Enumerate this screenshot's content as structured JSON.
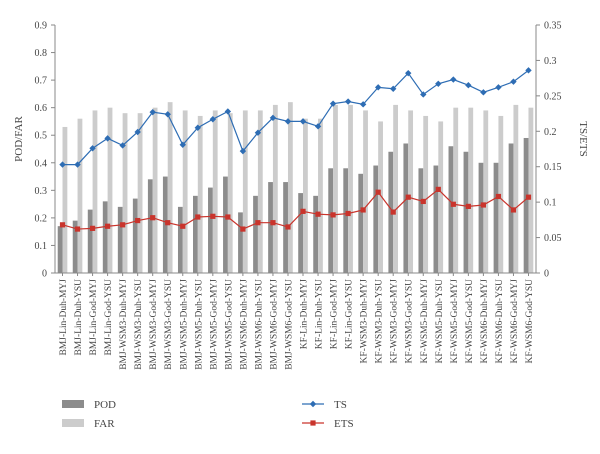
{
  "chart_data": {
    "type": "bar",
    "ylabel": "POD/FAR",
    "y2label": "TS/ETS",
    "ylim": [
      0,
      0.9
    ],
    "y2lim": [
      0,
      0.35
    ],
    "yticks": [
      "0",
      "0.1",
      "0.2",
      "0.3",
      "0.4",
      "0.5",
      "0.6",
      "0.7",
      "0.8",
      "0.9"
    ],
    "y2ticks": [
      "0",
      "0.05",
      "0.1",
      "0.15",
      "0.2",
      "0.25",
      "0.3",
      "0.35"
    ],
    "grid": false,
    "legend_position": "bottom",
    "categories": [
      "BMJ-Lin-Duh-MYJ",
      "BMJ-Lin-Duh-YSU",
      "BMJ-Lin-God-MYJ",
      "BMJ-Lin-God-YSU",
      "BMJ-WSM3-Duh-MYJ",
      "BMJ-WSM3-Duh-YSU",
      "BMJ-WSM3-God-MYJ",
      "BMJ-WSM3-God-YSU",
      "BMJ-WSM5-Duh-MYJ",
      "BMJ-WSM5-Duh-YSU",
      "BMJ-WSM5-God-MYJ",
      "BMJ-WSM5-God-YSU",
      "BMJ-WSM6-Duh-MYJ",
      "BMJ-WSM6-Duh-YSU",
      "BMJ-WSM6-God-MYJ",
      "BMJ-WSM6-God-YSU",
      "KF-Lin-Duh-MYJ",
      "KF-Lin-Duh-YSU",
      "KF-Lin-God-MYJ",
      "KF-Lin-God-YSU",
      "KF-WSM3-Duh-MYJ",
      "KF-WSM3-Duh-YSU",
      "KF-WSM3-God-MYJ",
      "KF-WSM3-God-YSU",
      "KF-WSM5-Duh-MYJ",
      "KF-WSM5-Duh-YSU",
      "KF-WSM5-God-MYJ",
      "KF-WSM5-God-YSU",
      "KF-WSM6-Duh-MYJ",
      "KF-WSM6-Duh-YSU",
      "KF-WSM6-God-MYJ",
      "KF-WSM6-God-YSU"
    ],
    "series": [
      {
        "name": "POD",
        "kind": "bar",
        "axis": "left",
        "color": "#8c8c8c",
        "values": [
          0.17,
          0.19,
          0.23,
          0.26,
          0.24,
          0.27,
          0.34,
          0.35,
          0.24,
          0.28,
          0.31,
          0.35,
          0.22,
          0.28,
          0.33,
          0.33,
          0.29,
          0.28,
          0.38,
          0.38,
          0.36,
          0.39,
          0.44,
          0.47,
          0.38,
          0.39,
          0.46,
          0.44,
          0.4,
          0.4,
          0.47,
          0.49
        ]
      },
      {
        "name": "FAR",
        "kind": "bar",
        "axis": "left",
        "color": "#cccccc",
        "values": [
          0.53,
          0.56,
          0.59,
          0.6,
          0.58,
          0.58,
          0.6,
          0.62,
          0.59,
          0.57,
          0.59,
          0.58,
          0.59,
          0.59,
          0.61,
          0.62,
          0.56,
          0.56,
          0.61,
          0.61,
          0.59,
          0.55,
          0.61,
          0.59,
          0.57,
          0.55,
          0.6,
          0.6,
          0.59,
          0.57,
          0.61,
          0.6
        ]
      },
      {
        "name": "TS",
        "kind": "line",
        "axis": "right",
        "color": "#2e6db4",
        "marker": "diamond",
        "values": [
          0.153,
          0.153,
          0.176,
          0.19,
          0.18,
          0.199,
          0.227,
          0.224,
          0.181,
          0.205,
          0.217,
          0.228,
          0.172,
          0.198,
          0.219,
          0.214,
          0.214,
          0.207,
          0.239,
          0.242,
          0.238,
          0.262,
          0.26,
          0.282,
          0.252,
          0.267,
          0.273,
          0.265,
          0.255,
          0.262,
          0.27,
          0.286
        ]
      },
      {
        "name": "ETS",
        "kind": "line",
        "axis": "right",
        "color": "#c9342c",
        "marker": "square",
        "values": [
          0.068,
          0.062,
          0.063,
          0.066,
          0.068,
          0.074,
          0.078,
          0.071,
          0.066,
          0.079,
          0.08,
          0.079,
          0.062,
          0.071,
          0.071,
          0.065,
          0.087,
          0.083,
          0.082,
          0.084,
          0.089,
          0.114,
          0.086,
          0.107,
          0.101,
          0.118,
          0.097,
          0.094,
          0.096,
          0.108,
          0.089,
          0.107
        ]
      }
    ]
  }
}
